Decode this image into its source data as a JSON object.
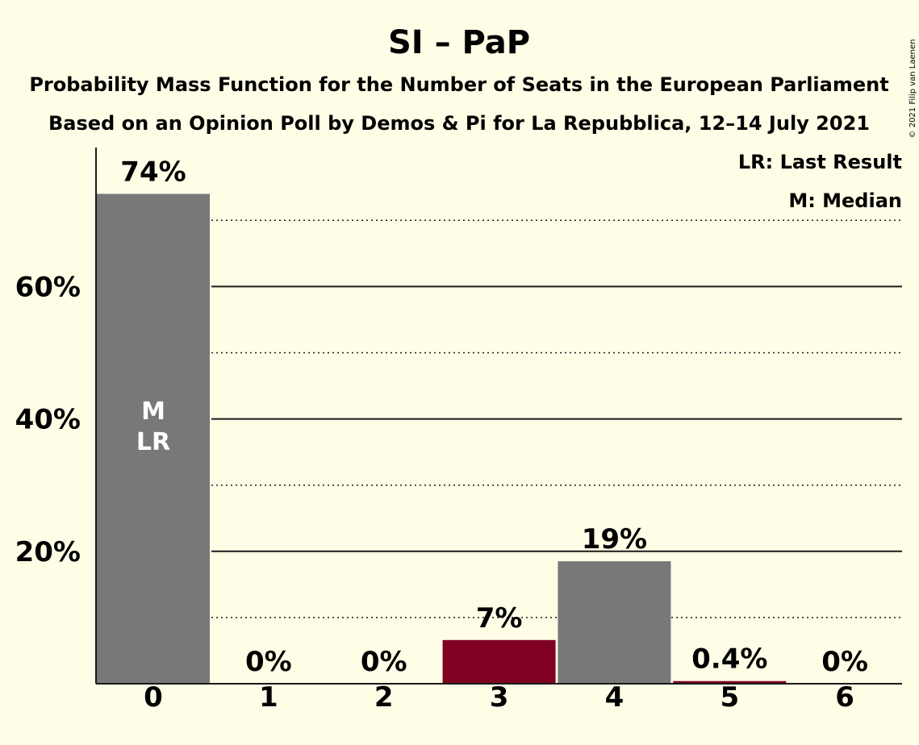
{
  "chart_data": {
    "type": "bar",
    "title": "SI – PaP",
    "subtitle_lines": [
      "Probability Mass Function for the Number of Seats in the European Parliament",
      "Based on an Opinion Poll by Demos & Pi for La Repubblica, 12–14 July 2021"
    ],
    "copyright": "© 2021 Filip van Laenen",
    "legend": [
      "LR: Last Result",
      "M: Median"
    ],
    "categories": [
      "0",
      "1",
      "2",
      "3",
      "4",
      "5",
      "6"
    ],
    "values": [
      74,
      0,
      0,
      6.6,
      18.5,
      0.4,
      0
    ],
    "value_labels": [
      "74%",
      "0%",
      "0%",
      "7%",
      "19%",
      "0.4%",
      "0%"
    ],
    "bar_colors": [
      "#787878",
      "#787878",
      "#787878",
      "#7f0021",
      "#787878",
      "#7f0021",
      "#787878"
    ],
    "bar_markers": [
      "M\nLR",
      "",
      "",
      "",
      "",
      "",
      ""
    ],
    "ylim": [
      0,
      81
    ],
    "yticks_major": [
      20,
      40,
      60
    ],
    "ytick_labels": [
      "20%",
      "40%",
      "60%"
    ],
    "yticks_minor": [
      10,
      30,
      50,
      70
    ],
    "grid": true
  }
}
